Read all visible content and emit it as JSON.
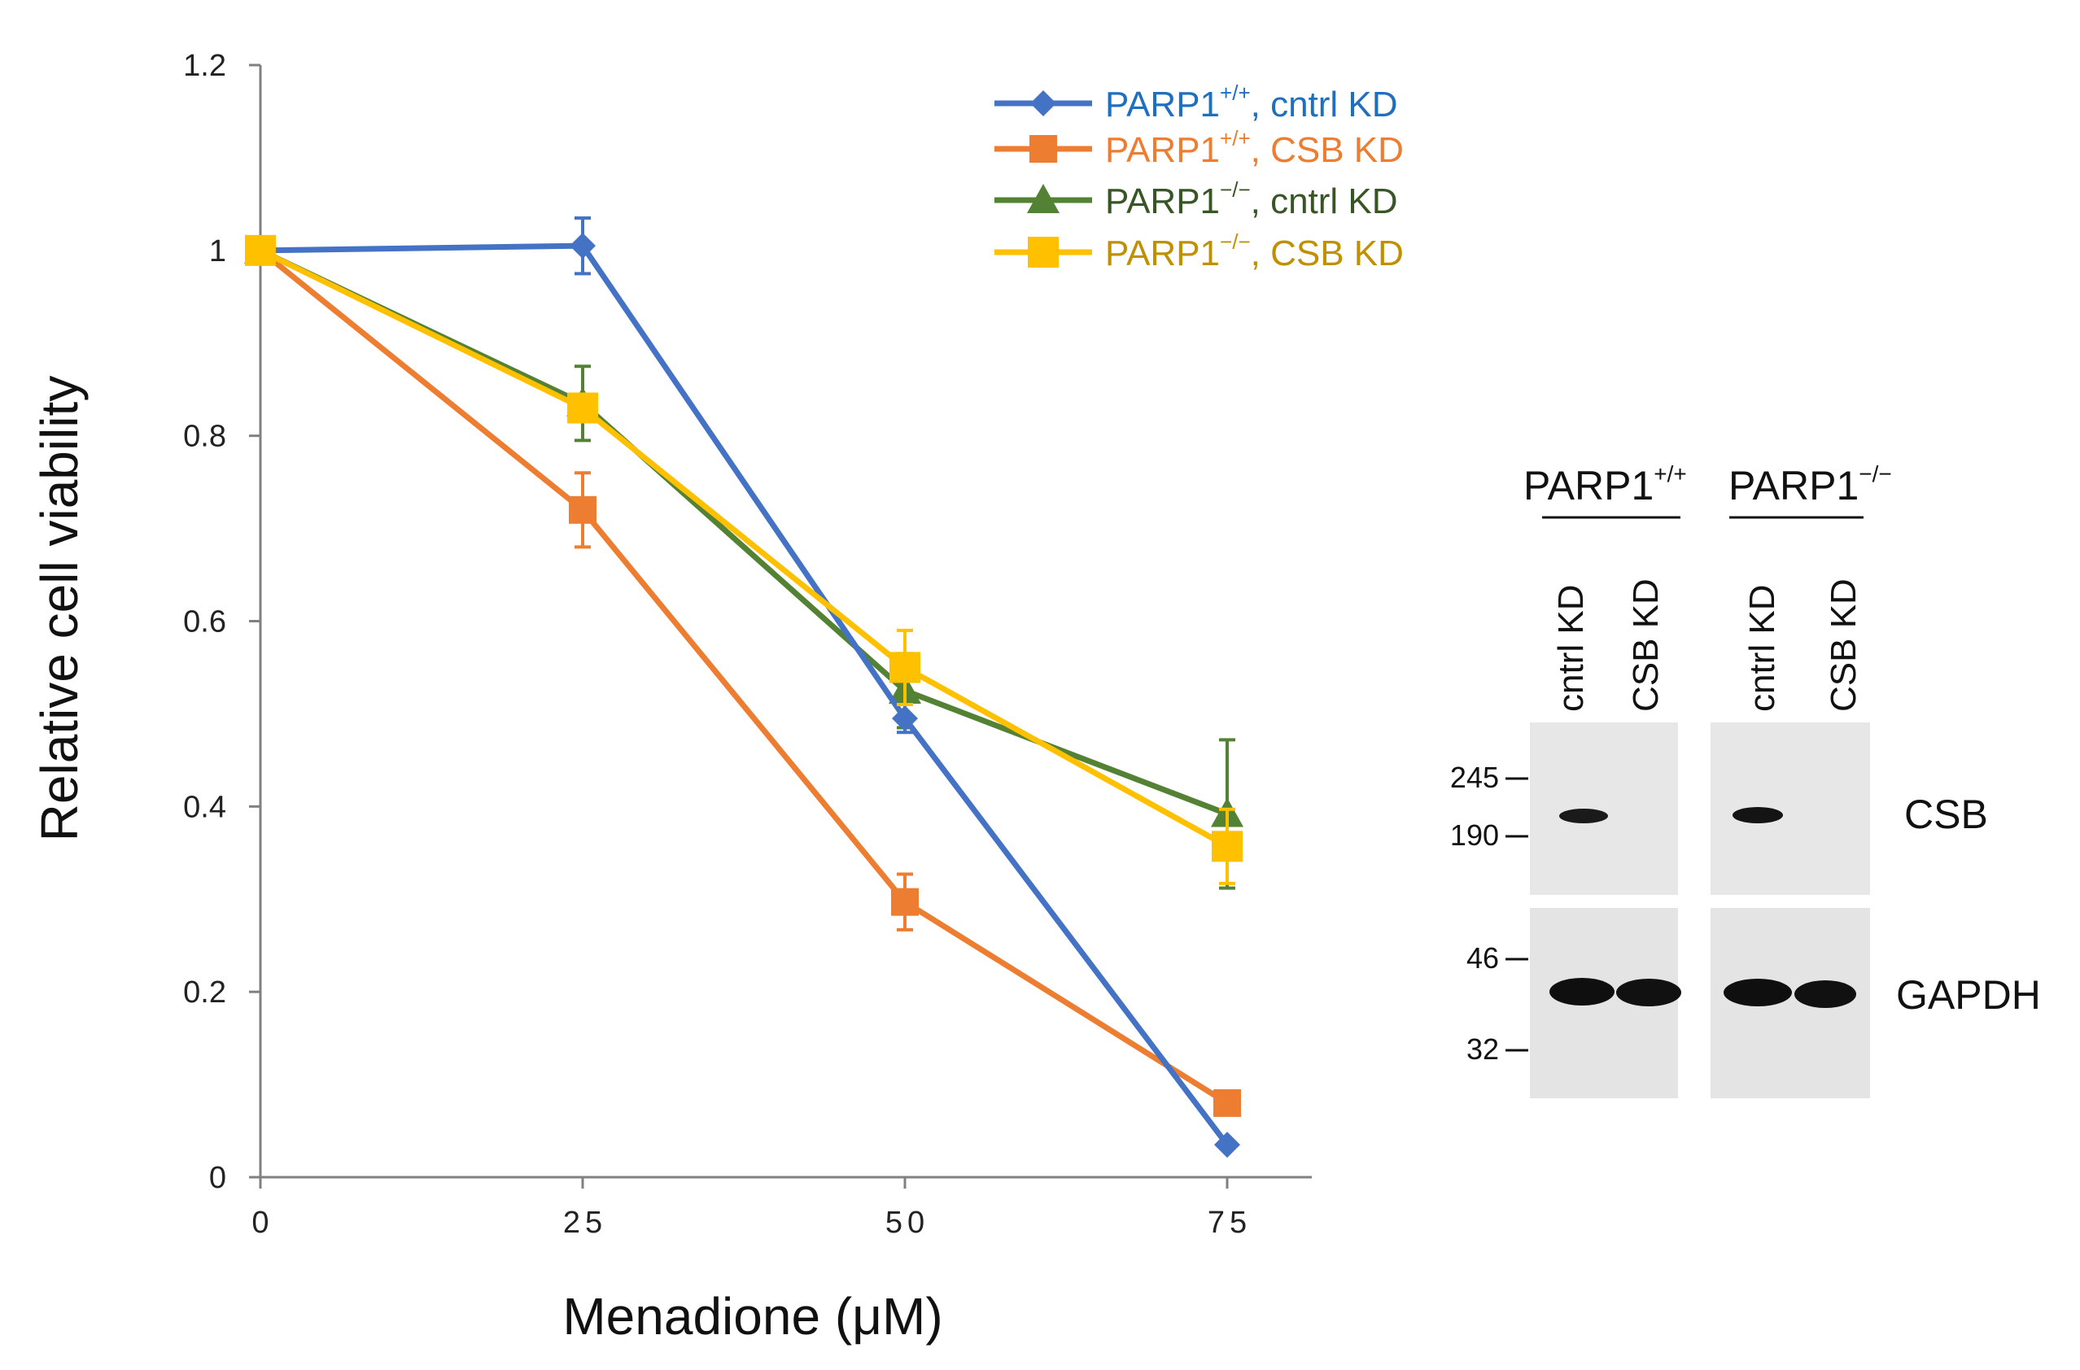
{
  "chart_data": {
    "type": "line",
    "xlabel": "Menadione (μM)",
    "ylabel": "Relative cell viability",
    "x": [
      0,
      25,
      50,
      75
    ],
    "x_tick_labels": [
      "0",
      "25",
      "50",
      "75"
    ],
    "ylim": [
      0,
      1.2
    ],
    "y_ticks": [
      0,
      0.2,
      0.4,
      0.6,
      0.8,
      1,
      1.2
    ],
    "y_tick_labels": [
      "0",
      "0.2",
      "0.4",
      "0.6",
      "0.8",
      "1",
      "1.2"
    ],
    "grid": false,
    "legend_position": "top-right",
    "series": [
      {
        "name": "PARP1+/+, cntrl KD",
        "name_base": "PARP1",
        "name_sup": "+/+",
        "name_rest": ", cntrl KD",
        "marker": "diamond",
        "color": "#4472C4",
        "label_color": "#1F6FBF",
        "values": [
          1.0,
          1.005,
          0.495,
          0.035
        ],
        "errors": [
          0,
          0.03,
          0.015,
          0
        ]
      },
      {
        "name": "PARP1+/+, CSB KD",
        "name_base": "PARP1",
        "name_sup": "+/+",
        "name_rest": ", CSB KD",
        "marker": "square-small",
        "color": "#ED7D31",
        "label_color": "#ED7D31",
        "values": [
          1.0,
          0.72,
          0.297,
          0.08
        ],
        "errors": [
          0,
          0.04,
          0.03,
          0
        ]
      },
      {
        "name": "PARP1−/−, cntrl KD",
        "name_base": "PARP1",
        "name_sup": "−/−",
        "name_rest": ", cntrl KD",
        "marker": "triangle",
        "color": "#548235",
        "label_color": "#375623",
        "values": [
          1.0,
          0.835,
          0.525,
          0.392
        ],
        "errors": [
          0,
          0.04,
          0.04,
          0.08
        ]
      },
      {
        "name": "PARP1−/−, CSB KD",
        "name_base": "PARP1",
        "name_sup": "−/−",
        "name_rest": ", CSB KD",
        "marker": "square",
        "color": "#FFC000",
        "label_color": "#BF9000",
        "values": [
          1.0,
          0.83,
          0.55,
          0.357
        ],
        "errors": [
          0,
          0.0,
          0.04,
          0.04
        ]
      }
    ]
  },
  "western_blot": {
    "groups": [
      {
        "base": "PARP1",
        "sup": "+/+"
      },
      {
        "base": "PARP1",
        "sup": "−/−"
      }
    ],
    "lanes": [
      "cntrl KD",
      "CSB KD",
      "cntrl KD",
      "CSB KD"
    ],
    "markers": {
      "top": [
        "245",
        "190"
      ],
      "bottom": [
        "46",
        "32"
      ]
    },
    "proteins": [
      "CSB",
      "GAPDH"
    ]
  }
}
